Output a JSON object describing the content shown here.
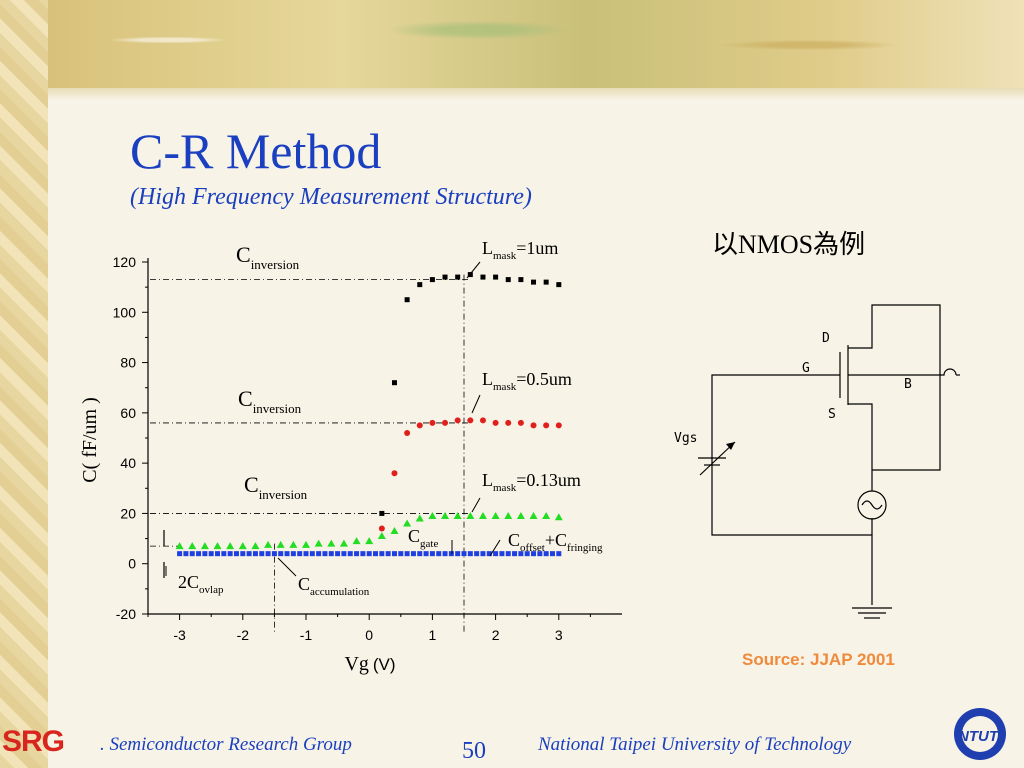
{
  "slide": {
    "title": "C-R Method",
    "subtitle": "(High Frequency Measurement Structure)",
    "nmos_label": "以NMOS為例",
    "source": "Source: JJAP 2001",
    "page_number": "50",
    "footer_left": ". Semiconductor Research Group",
    "footer_right": "National Taipei University of  Technology",
    "logo_left_text": "SRG",
    "logo_right_text": "NTUT"
  },
  "colors": {
    "title": "#1a3fc0",
    "source": "#f08a3c",
    "series_1um": "#000000",
    "series_05um": "#e0201c",
    "series_013um": "#22dd22",
    "series_offset": "#1f3fe0"
  },
  "chart_data": {
    "type": "scatter",
    "xlabel": "Vg",
    "xlabel_unit": "(V)",
    "ylabel": "C( fF/um )",
    "xlim": [
      -3.5,
      4
    ],
    "ylim": [
      -20,
      120
    ],
    "xticks": [
      -3,
      -2,
      -1,
      0,
      1,
      2,
      3
    ],
    "yticks": [
      -20,
      0,
      20,
      40,
      60,
      80,
      100,
      120
    ],
    "series": [
      {
        "marker": "square",
        "color": "#000000",
        "points": [
          [
            0.2,
            20
          ],
          [
            0.4,
            72
          ],
          [
            0.6,
            105
          ],
          [
            0.8,
            111
          ],
          [
            1.0,
            113
          ],
          [
            1.2,
            114
          ],
          [
            1.4,
            114
          ],
          [
            1.6,
            115
          ],
          [
            1.8,
            114
          ],
          [
            2.0,
            114
          ],
          [
            2.2,
            113
          ],
          [
            2.4,
            113
          ],
          [
            2.6,
            112
          ],
          [
            2.8,
            112
          ],
          [
            3.0,
            111
          ]
        ]
      },
      {
        "marker": "circle",
        "color": "#e0201c",
        "points": [
          [
            0.2,
            14
          ],
          [
            0.4,
            36
          ],
          [
            0.6,
            52
          ],
          [
            0.8,
            55
          ],
          [
            1.0,
            56
          ],
          [
            1.2,
            56
          ],
          [
            1.4,
            57
          ],
          [
            1.6,
            57
          ],
          [
            1.8,
            57
          ],
          [
            2.0,
            56
          ],
          [
            2.2,
            56
          ],
          [
            2.4,
            56
          ],
          [
            2.6,
            55
          ],
          [
            2.8,
            55
          ],
          [
            3.0,
            55
          ]
        ]
      },
      {
        "marker": "triangle",
        "color": "#22dd22",
        "points": [
          [
            -3.0,
            7
          ],
          [
            -2.8,
            7
          ],
          [
            -2.6,
            7
          ],
          [
            -2.4,
            7
          ],
          [
            -2.2,
            7
          ],
          [
            -2.0,
            7
          ],
          [
            -1.8,
            7
          ],
          [
            -1.6,
            7.5
          ],
          [
            -1.4,
            7.5
          ],
          [
            -1.2,
            7.5
          ],
          [
            -1.0,
            7.5
          ],
          [
            -0.8,
            8
          ],
          [
            -0.6,
            8
          ],
          [
            -0.4,
            8
          ],
          [
            -0.2,
            9
          ],
          [
            0.0,
            9
          ],
          [
            0.2,
            11
          ],
          [
            0.4,
            13
          ],
          [
            0.6,
            16
          ],
          [
            0.8,
            18
          ],
          [
            1.0,
            19
          ],
          [
            1.2,
            19
          ],
          [
            1.4,
            19
          ],
          [
            1.6,
            19
          ],
          [
            1.8,
            19
          ],
          [
            2.0,
            19
          ],
          [
            2.2,
            19
          ],
          [
            2.4,
            19
          ],
          [
            2.6,
            19
          ],
          [
            2.8,
            19
          ],
          [
            3.0,
            18.5
          ]
        ]
      },
      {
        "marker": "square",
        "color": "#1f3fe0",
        "points": [
          [
            -3.0,
            4
          ],
          [
            -2.9,
            4
          ],
          [
            -2.8,
            4
          ],
          [
            -2.7,
            4
          ],
          [
            -2.6,
            4
          ],
          [
            -2.5,
            4
          ],
          [
            -2.4,
            4
          ],
          [
            -2.3,
            4
          ],
          [
            -2.2,
            4
          ],
          [
            -2.1,
            4
          ],
          [
            -2.0,
            4
          ],
          [
            -1.9,
            4
          ],
          [
            -1.8,
            4
          ],
          [
            -1.7,
            4
          ],
          [
            -1.6,
            4
          ],
          [
            -1.5,
            4
          ],
          [
            -1.4,
            4
          ],
          [
            -1.3,
            4
          ],
          [
            -1.2,
            4
          ],
          [
            -1.1,
            4
          ],
          [
            -1.0,
            4
          ],
          [
            -0.9,
            4
          ],
          [
            -0.8,
            4
          ],
          [
            -0.7,
            4
          ],
          [
            -0.6,
            4
          ],
          [
            -0.5,
            4
          ],
          [
            -0.4,
            4
          ],
          [
            -0.3,
            4
          ],
          [
            -0.2,
            4
          ],
          [
            -0.1,
            4
          ],
          [
            0.0,
            4
          ],
          [
            0.1,
            4
          ],
          [
            0.2,
            4
          ],
          [
            0.3,
            4
          ],
          [
            0.4,
            4
          ],
          [
            0.5,
            4
          ],
          [
            0.6,
            4
          ],
          [
            0.7,
            4
          ],
          [
            0.8,
            4
          ],
          [
            0.9,
            4
          ],
          [
            1.0,
            4
          ],
          [
            1.1,
            4
          ],
          [
            1.2,
            4
          ],
          [
            1.3,
            4
          ],
          [
            1.4,
            4
          ],
          [
            1.5,
            4
          ],
          [
            1.6,
            4
          ],
          [
            1.7,
            4
          ],
          [
            1.8,
            4
          ],
          [
            1.9,
            4
          ],
          [
            2.0,
            4
          ],
          [
            2.1,
            4
          ],
          [
            2.2,
            4
          ],
          [
            2.3,
            4
          ],
          [
            2.4,
            4
          ],
          [
            2.5,
            4
          ],
          [
            2.6,
            4
          ],
          [
            2.7,
            4
          ],
          [
            2.8,
            4
          ],
          [
            2.9,
            4
          ],
          [
            3.0,
            4
          ]
        ]
      }
    ],
    "reference_lines": {
      "horizontal_y": [
        113,
        56,
        20,
        7
      ],
      "vertical_x": [
        1.5,
        -1.5
      ]
    },
    "annotations": {
      "c_inversion_top": {
        "main": "C",
        "sub": "inversion"
      },
      "c_inversion_mid": {
        "main": "C",
        "sub": "inversion"
      },
      "c_inversion_low": {
        "main": "C",
        "sub": "inversion"
      },
      "lmask_1um": {
        "main": "L",
        "sub": "mask",
        "tail": "=1um"
      },
      "lmask_05um": {
        "main": "L",
        "sub": "mask",
        "tail": "=0.5um"
      },
      "lmask_013um": {
        "main": "L",
        "sub": "mask",
        "tail": "=0.13um"
      },
      "c_gate": {
        "main": "C",
        "sub": "gate"
      },
      "c_offset": {
        "main": "C",
        "sub": "offset",
        "plus": "+C",
        "sub2": "fringing"
      },
      "ovlap": {
        "main": "2C",
        "sub": "ovlap"
      },
      "accumulation": {
        "main": "C",
        "sub": "accumulation"
      }
    }
  },
  "circuit": {
    "labels": {
      "d": "D",
      "g": "G",
      "b": "B",
      "s": "S",
      "vgs": "Vgs"
    }
  }
}
